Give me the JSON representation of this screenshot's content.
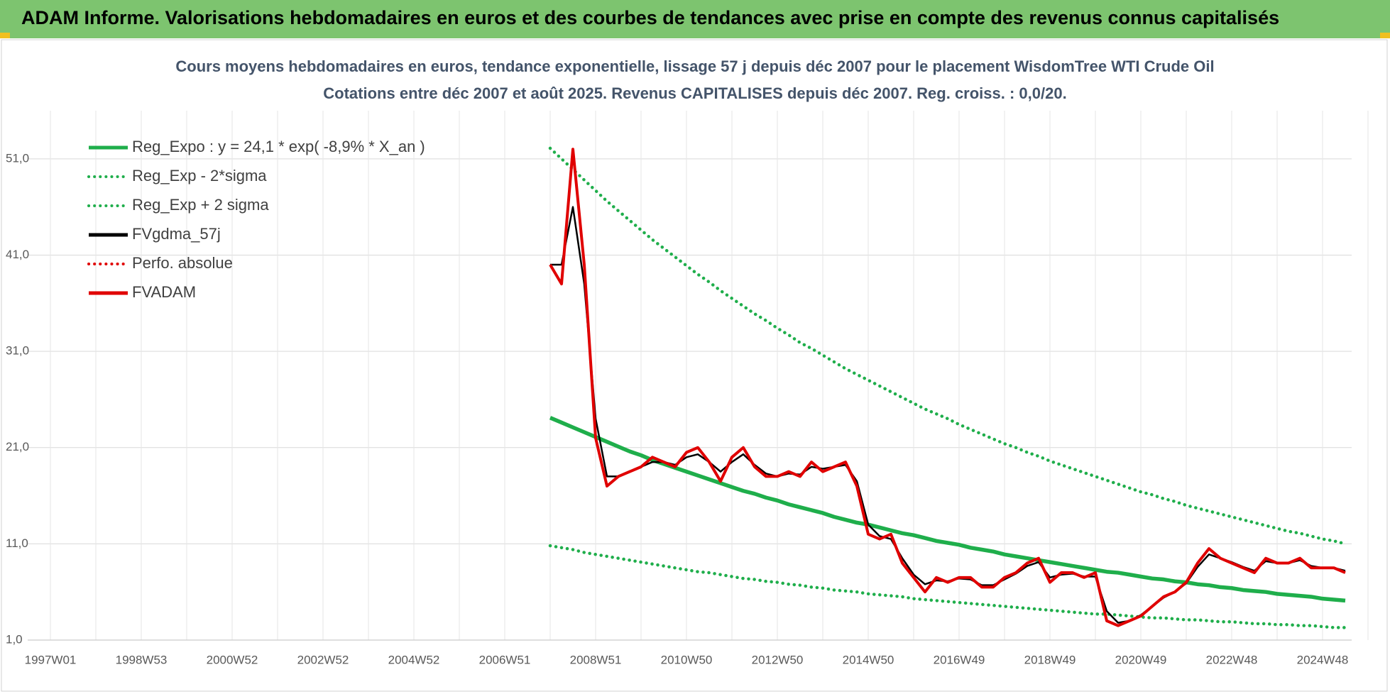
{
  "header": {
    "title": "ADAM Informe. Valorisations hebdomadaires en euros et des courbes de tendances avec prise en compte des revenus connus capitalisés"
  },
  "chart_data": {
    "type": "line",
    "title": "Cours moyens hebdomadaires en euros, tendance exponentielle, lissage 57 j depuis déc 2007 pour le placement WisdomTree WTI Crude Oil",
    "subtitle": "Cotations entre déc 2007 et août 2025. Revenus CAPITALISES depuis déc 2007. Reg. croiss. : 0,0/20.",
    "categories": [
      "1997W01",
      null,
      null,
      null,
      null,
      null,
      null,
      null,
      "1998W53",
      null,
      null,
      null,
      null,
      null,
      null,
      null,
      "2000W52",
      null,
      null,
      null,
      null,
      null,
      null,
      null,
      "2002W52",
      null,
      null,
      null,
      null,
      null,
      null,
      null,
      "2004W52",
      null,
      null,
      null,
      null,
      null,
      null,
      null,
      "2006W51",
      null,
      null,
      null,
      null,
      null,
      null,
      null,
      "2008W51",
      null,
      null,
      null,
      null,
      null,
      null,
      null,
      "2010W50",
      null,
      null,
      null,
      null,
      null,
      null,
      null,
      "2012W50",
      null,
      null,
      null,
      null,
      null,
      null,
      null,
      "2014W50",
      null,
      null,
      null,
      null,
      null,
      null,
      null,
      "2016W49",
      null,
      null,
      null,
      null,
      null,
      null,
      null,
      "2018W49",
      null,
      null,
      null,
      null,
      null,
      null,
      null,
      "2020W49",
      null,
      null,
      null,
      null,
      null,
      null,
      null,
      "2022W48",
      null,
      null,
      null,
      null,
      null,
      null,
      null,
      "2024W48",
      null,
      null
    ],
    "ylim": [
      1,
      56
    ],
    "yticks": [
      {
        "value": 1,
        "label": "1,0"
      },
      {
        "value": 11,
        "label": "11,0"
      },
      {
        "value": 21,
        "label": "21,0"
      },
      {
        "value": 31,
        "label": "31,0"
      },
      {
        "value": 41,
        "label": "41,0"
      },
      {
        "value": 51,
        "label": "51,0"
      }
    ],
    "grid": true,
    "legend": "upper left",
    "series": [
      {
        "name": "Reg_Expo : y = 24,1 * exp( -8,9% *  X_an )",
        "color": "#1fae4b",
        "style": "solid",
        "values": [
          null,
          null,
          null,
          null,
          null,
          null,
          null,
          null,
          null,
          null,
          null,
          null,
          null,
          null,
          null,
          null,
          null,
          null,
          null,
          null,
          null,
          null,
          null,
          null,
          null,
          null,
          null,
          null,
          null,
          null,
          null,
          null,
          null,
          null,
          null,
          null,
          null,
          null,
          null,
          null,
          null,
          null,
          null,
          null,
          24.1,
          23.6,
          23.1,
          22.6,
          22.1,
          21.6,
          21.1,
          20.6,
          20.2,
          19.7,
          19.3,
          18.9,
          18.5,
          18.1,
          17.7,
          17.3,
          16.9,
          16.5,
          16.2,
          15.8,
          15.5,
          15.1,
          14.8,
          14.5,
          14.2,
          13.8,
          13.5,
          13.2,
          13.0,
          12.7,
          12.4,
          12.1,
          11.9,
          11.6,
          11.3,
          11.1,
          10.9,
          10.6,
          10.4,
          10.2,
          9.9,
          9.7,
          9.5,
          9.3,
          9.1,
          8.9,
          8.7,
          8.5,
          8.3,
          8.1,
          8.0,
          7.8,
          7.6,
          7.4,
          7.3,
          7.1,
          7.0,
          6.8,
          6.7,
          6.5,
          6.4,
          6.2,
          6.1,
          6.0,
          5.8,
          5.7,
          5.6,
          5.5,
          5.3,
          5.2,
          5.1
        ]
      },
      {
        "name": "Reg_Exp - 2*sigma",
        "color": "#1fae4b",
        "style": "dotted",
        "values": [
          null,
          null,
          null,
          null,
          null,
          null,
          null,
          null,
          null,
          null,
          null,
          null,
          null,
          null,
          null,
          null,
          null,
          null,
          null,
          null,
          null,
          null,
          null,
          null,
          null,
          null,
          null,
          null,
          null,
          null,
          null,
          null,
          null,
          null,
          null,
          null,
          null,
          null,
          null,
          null,
          null,
          null,
          null,
          null,
          10.8,
          10.6,
          10.4,
          10.1,
          9.9,
          9.7,
          9.5,
          9.3,
          9.1,
          8.9,
          8.7,
          8.5,
          8.3,
          8.1,
          8.0,
          7.8,
          7.6,
          7.4,
          7.3,
          7.1,
          7.0,
          6.8,
          6.7,
          6.5,
          6.4,
          6.2,
          6.1,
          6.0,
          5.8,
          5.7,
          5.6,
          5.5,
          5.3,
          5.2,
          5.1,
          5.0,
          4.9,
          4.8,
          4.7,
          4.6,
          4.5,
          4.4,
          4.3,
          4.2,
          4.1,
          4.0,
          3.9,
          3.8,
          3.7,
          3.7,
          3.6,
          3.5,
          3.4,
          3.3,
          3.3,
          3.2,
          3.1,
          3.1,
          3.0,
          2.9,
          2.9,
          2.8,
          2.7,
          2.7,
          2.6,
          2.6,
          2.5,
          2.5,
          2.4,
          2.3,
          2.3
        ]
      },
      {
        "name": "Reg_Exp + 2 sigma",
        "color": "#1fae4b",
        "style": "dotted",
        "values": [
          null,
          null,
          null,
          null,
          null,
          null,
          null,
          null,
          null,
          null,
          null,
          null,
          null,
          null,
          null,
          null,
          null,
          null,
          null,
          null,
          null,
          null,
          null,
          null,
          null,
          null,
          null,
          null,
          null,
          null,
          null,
          null,
          null,
          null,
          null,
          null,
          null,
          null,
          null,
          null,
          null,
          null,
          null,
          null,
          52.1,
          51.0,
          49.9,
          48.8,
          47.7,
          46.6,
          45.6,
          44.6,
          43.6,
          42.6,
          41.7,
          40.8,
          39.9,
          39.0,
          38.2,
          37.3,
          36.5,
          35.7,
          34.9,
          34.2,
          33.4,
          32.7,
          31.9,
          31.3,
          30.6,
          29.9,
          29.2,
          28.6,
          28.0,
          27.4,
          26.8,
          26.2,
          25.6,
          25.0,
          24.5,
          24.0,
          23.4,
          22.9,
          22.4,
          21.9,
          21.4,
          21.0,
          20.5,
          20.1,
          19.6,
          19.2,
          18.8,
          18.4,
          18.0,
          17.6,
          17.2,
          16.8,
          16.4,
          16.1,
          15.7,
          15.4,
          15.0,
          14.7,
          14.4,
          14.1,
          13.8,
          13.5,
          13.2,
          12.9,
          12.6,
          12.3,
          12.1,
          11.8,
          11.5,
          11.3,
          11.0
        ]
      },
      {
        "name": "FVgdma_57j",
        "color": "#000000",
        "style": "solid",
        "values": [
          null,
          null,
          null,
          null,
          null,
          null,
          null,
          null,
          null,
          null,
          null,
          null,
          null,
          null,
          null,
          null,
          null,
          null,
          null,
          null,
          null,
          null,
          null,
          null,
          null,
          null,
          null,
          null,
          null,
          null,
          null,
          null,
          null,
          null,
          null,
          null,
          null,
          null,
          null,
          null,
          null,
          null,
          null,
          null,
          40,
          40,
          46,
          38,
          24,
          18,
          18,
          18.5,
          19,
          19.5,
          19.5,
          19.2,
          20,
          20.3,
          19.5,
          18.5,
          19.5,
          20.3,
          19.2,
          18.3,
          18,
          18.3,
          18.2,
          19,
          18.8,
          19,
          19.2,
          17.5,
          13,
          11.8,
          11.5,
          9.5,
          7.8,
          6.8,
          7.2,
          7.1,
          7.4,
          7.3,
          6.7,
          6.7,
          7.3,
          7.9,
          8.7,
          9.1,
          7.5,
          7.8,
          7.9,
          7.6,
          7.6,
          4,
          2.8,
          3,
          3.6,
          4.5,
          5.4,
          6,
          6.9,
          8.6,
          9.9,
          9.5,
          9.1,
          8.6,
          8.2,
          9.2,
          9,
          9,
          9.3,
          8.7,
          8.5,
          8.5,
          8.2
        ]
      },
      {
        "name": "Perfo. absolue",
        "color": "#e00000",
        "style": "dotted",
        "values": [
          null,
          null,
          null,
          null,
          null,
          null,
          null,
          null,
          null,
          null,
          null,
          null,
          null,
          null,
          null,
          null,
          null,
          null,
          null,
          null,
          null,
          null,
          null,
          null,
          null,
          null,
          null,
          null,
          null,
          null,
          null,
          null,
          null,
          null,
          null,
          null,
          null,
          null,
          null,
          null,
          null,
          null,
          null,
          null,
          null,
          null,
          null,
          null,
          null,
          null,
          null,
          null,
          null,
          null,
          null,
          null,
          null,
          null,
          null,
          null,
          null,
          null,
          null,
          null,
          null,
          null,
          null,
          null,
          null,
          null,
          null,
          null,
          null,
          null,
          null,
          null,
          null,
          null,
          null,
          null,
          null,
          null,
          null,
          null,
          null,
          null,
          null,
          null,
          null,
          null,
          null,
          null,
          null,
          null,
          null,
          null,
          null,
          null,
          null,
          null,
          null,
          null,
          null,
          null,
          null,
          null,
          null,
          null,
          null,
          null,
          null,
          null,
          null,
          null,
          null
        ]
      },
      {
        "name": "FVADAM",
        "color": "#e00000",
        "style": "solid",
        "values": [
          null,
          null,
          null,
          null,
          null,
          null,
          null,
          null,
          null,
          null,
          null,
          null,
          null,
          null,
          null,
          null,
          null,
          null,
          null,
          null,
          null,
          null,
          null,
          null,
          null,
          null,
          null,
          null,
          null,
          null,
          null,
          null,
          null,
          null,
          null,
          null,
          null,
          null,
          null,
          null,
          null,
          null,
          null,
          null,
          40,
          38,
          52,
          40,
          22,
          17,
          18,
          18.5,
          19,
          20,
          19.5,
          19,
          20.5,
          21,
          19.5,
          17.5,
          20,
          21,
          19,
          18,
          18,
          18.5,
          18,
          19.5,
          18.5,
          19,
          19.5,
          17,
          12,
          11.5,
          12,
          9,
          7.5,
          6,
          7.5,
          7,
          7.5,
          7.5,
          6.5,
          6.5,
          7.5,
          8,
          9,
          9.5,
          7,
          8,
          8,
          7.5,
          8,
          3,
          2.5,
          3,
          3.5,
          4.5,
          5.5,
          6,
          7,
          9,
          10.5,
          9.5,
          9,
          8.5,
          8,
          9.5,
          9,
          9,
          9.5,
          8.5,
          8.5,
          8.5,
          8.0
        ]
      }
    ]
  }
}
